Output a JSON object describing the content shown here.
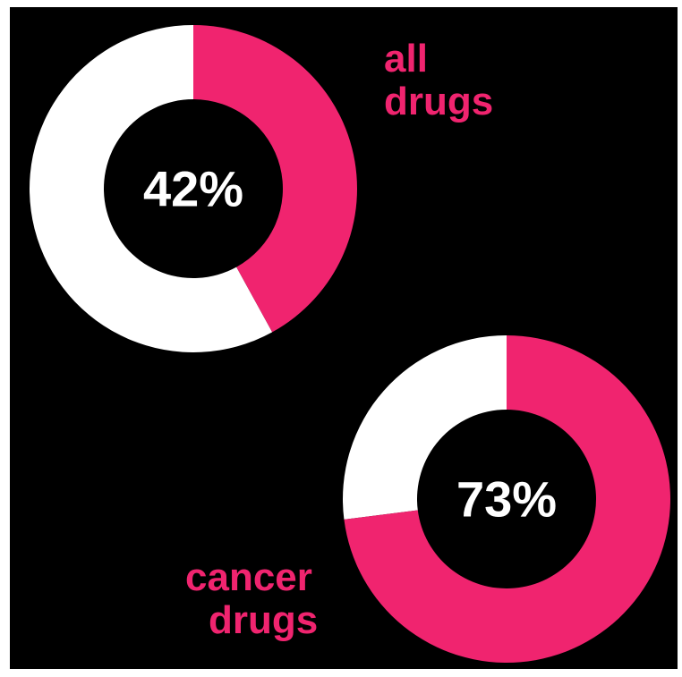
{
  "chart_data": [
    {
      "type": "pie",
      "variant": "donut",
      "value_percent": 42,
      "center_label": "42%",
      "label_lines": [
        "all",
        "drugs"
      ],
      "highlight_color": "#f0246f",
      "remainder_color": "#ffffff"
    },
    {
      "type": "pie",
      "variant": "donut",
      "value_percent": 73,
      "center_label": "73%",
      "label_lines": [
        "cancer",
        "drugs"
      ],
      "highlight_color": "#f0246f",
      "remainder_color": "#ffffff"
    }
  ],
  "colors": {
    "background": "#000000",
    "accent": "#f0246f",
    "text": "#ffffff"
  }
}
